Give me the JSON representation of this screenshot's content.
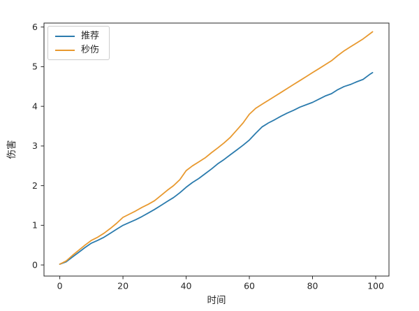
{
  "chart_data": {
    "type": "line",
    "title": "",
    "xlabel": "时间",
    "ylabel": "伤害",
    "xlim": [
      -5,
      104.2
    ],
    "ylim": [
      -0.28,
      6.1
    ],
    "xticks": [
      0,
      20,
      40,
      60,
      80,
      100
    ],
    "yticks": [
      0,
      1,
      2,
      3,
      4,
      5,
      6
    ],
    "grid": false,
    "legend_position": "upper left",
    "frame_color": "#262626",
    "x": [
      0,
      2,
      4,
      6,
      8,
      10,
      12,
      14,
      16,
      18,
      20,
      22,
      24,
      26,
      28,
      30,
      32,
      34,
      36,
      38,
      40,
      42,
      44,
      46,
      48,
      50,
      52,
      54,
      56,
      58,
      60,
      62,
      64,
      66,
      68,
      70,
      72,
      74,
      76,
      78,
      80,
      82,
      84,
      86,
      88,
      90,
      92,
      94,
      96,
      98,
      99
    ],
    "series": [
      {
        "name": "推荐",
        "color": "#2b7bad",
        "values": [
          0.02,
          0.08,
          0.2,
          0.32,
          0.44,
          0.55,
          0.62,
          0.7,
          0.8,
          0.9,
          1.0,
          1.07,
          1.14,
          1.22,
          1.31,
          1.4,
          1.5,
          1.6,
          1.7,
          1.82,
          1.96,
          2.08,
          2.18,
          2.3,
          2.42,
          2.55,
          2.66,
          2.78,
          2.9,
          3.02,
          3.15,
          3.32,
          3.48,
          3.58,
          3.66,
          3.75,
          3.83,
          3.9,
          3.98,
          4.04,
          4.1,
          4.18,
          4.26,
          4.32,
          4.42,
          4.5,
          4.55,
          4.62,
          4.68,
          4.8,
          4.85
        ]
      },
      {
        "name": "秒伤",
        "color": "#e8992f",
        "values": [
          0.02,
          0.1,
          0.24,
          0.37,
          0.5,
          0.62,
          0.7,
          0.8,
          0.92,
          1.05,
          1.2,
          1.28,
          1.36,
          1.45,
          1.53,
          1.62,
          1.75,
          1.88,
          2.0,
          2.15,
          2.38,
          2.5,
          2.6,
          2.7,
          2.83,
          2.95,
          3.08,
          3.22,
          3.4,
          3.58,
          3.8,
          3.95,
          4.05,
          4.15,
          4.25,
          4.35,
          4.45,
          4.55,
          4.65,
          4.75,
          4.85,
          4.95,
          5.05,
          5.15,
          5.28,
          5.4,
          5.5,
          5.6,
          5.7,
          5.82,
          5.88
        ]
      }
    ]
  }
}
